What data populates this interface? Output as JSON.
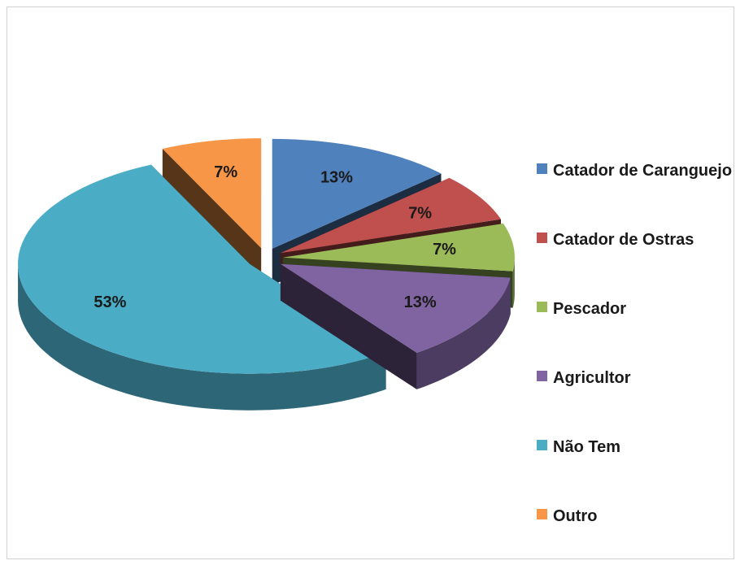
{
  "chart_data": {
    "type": "pie",
    "categories": [
      "Catador de Caranguejo",
      "Catador de Ostras",
      "Pescador",
      "Agricultor",
      "Não Tem",
      "Outro"
    ],
    "values": [
      13,
      7,
      7,
      13,
      53,
      7
    ],
    "value_labels": [
      "13%",
      "7%",
      "7%",
      "13%",
      "53%",
      "7%"
    ],
    "colors": [
      "#4f81bd",
      "#c0504d",
      "#9bbb59",
      "#8064a2",
      "#4bacc6",
      "#f79646"
    ],
    "legend": "right"
  }
}
